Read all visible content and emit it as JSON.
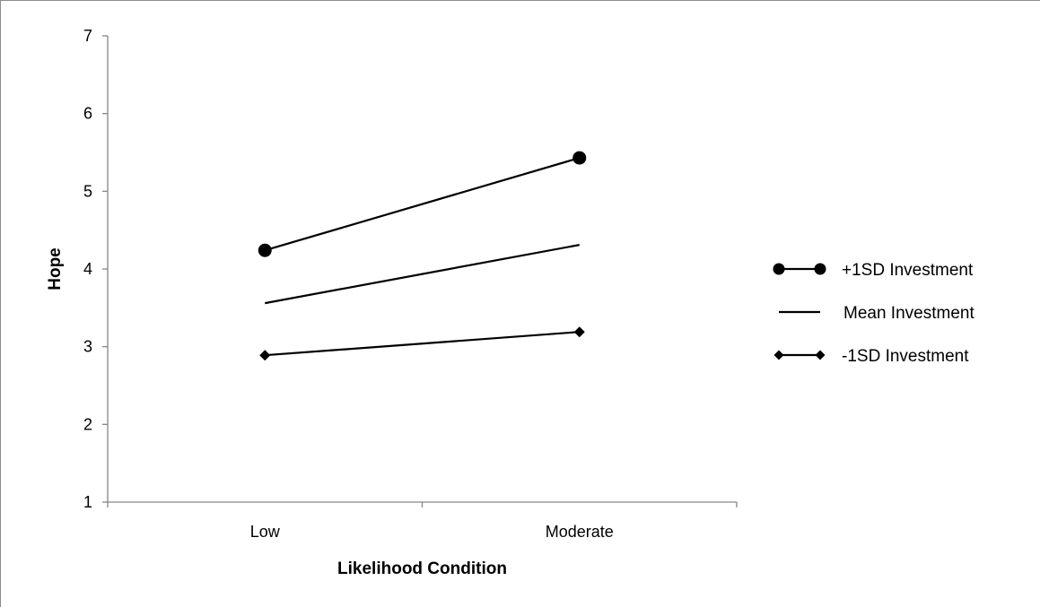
{
  "chart_data": {
    "type": "line",
    "title": "",
    "xlabel": "Likelihood Condition",
    "ylabel": "Hope",
    "categories": [
      "Low",
      "Moderate"
    ],
    "ylim": [
      1,
      7
    ],
    "yticks": [
      "1",
      "2",
      "3",
      "4",
      "5",
      "6",
      "7"
    ],
    "grid": false,
    "legend_position": "right",
    "series": [
      {
        "name": "+1SD Investment",
        "values": [
          4.24,
          5.43
        ],
        "marker": "circle"
      },
      {
        "name": "Mean Investment",
        "values": [
          3.56,
          4.31
        ],
        "marker": "none"
      },
      {
        "name": "-1SD Investment",
        "values": [
          2.89,
          3.19
        ],
        "marker": "diamond"
      }
    ]
  }
}
